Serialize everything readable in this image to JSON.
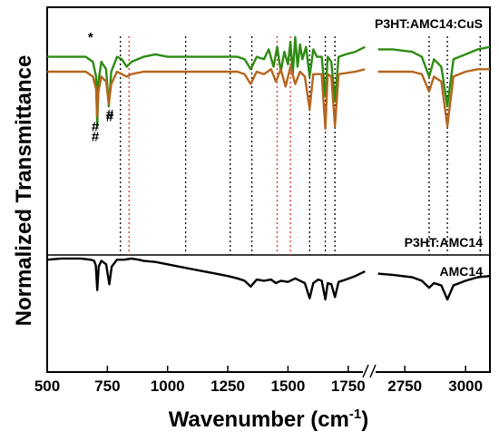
{
  "chart_data": {
    "type": "line",
    "xlabel": "Wavenumber (cm",
    "xlabel_sup": "-1",
    "xlabel_close": ")",
    "ylabel": "Normalized Transmittance",
    "x_tick_labels": [
      "500",
      "750",
      "1000",
      "1250",
      "1500",
      "1750",
      "2750",
      "3000"
    ],
    "x_tick_values": [
      500,
      750,
      1000,
      1250,
      1500,
      1750,
      2750,
      3000
    ],
    "broken_axis": {
      "left_range": [
        500,
        1830
      ],
      "right_range": [
        2630,
        3100
      ]
    },
    "panels": [
      {
        "name": "top",
        "labels": [
          "P3HT:AMC14:CuS",
          "P3HT:AMC14"
        ]
      },
      {
        "name": "bottom",
        "labels": [
          "AMC14"
        ]
      }
    ],
    "series": [
      {
        "name": "P3HT:AMC14:CuS",
        "color": "#2e8b12",
        "panel": "top",
        "points": [
          [
            500,
            80
          ],
          [
            560,
            80
          ],
          [
            620,
            80
          ],
          [
            660,
            80
          ],
          [
            690,
            78
          ],
          [
            703,
            72
          ],
          [
            708,
            52
          ],
          [
            713,
            70
          ],
          [
            725,
            78
          ],
          [
            745,
            75
          ],
          [
            756,
            60
          ],
          [
            766,
            74
          ],
          [
            790,
            80
          ],
          [
            810,
            79
          ],
          [
            830,
            76
          ],
          [
            850,
            78
          ],
          [
            900,
            80
          ],
          [
            950,
            81
          ],
          [
            1000,
            80
          ],
          [
            1050,
            80
          ],
          [
            1100,
            80
          ],
          [
            1150,
            80
          ],
          [
            1200,
            80
          ],
          [
            1250,
            80
          ],
          [
            1290,
            80
          ],
          [
            1320,
            79
          ],
          [
            1345,
            75
          ],
          [
            1370,
            80
          ],
          [
            1400,
            79
          ],
          [
            1420,
            83
          ],
          [
            1440,
            76
          ],
          [
            1455,
            84
          ],
          [
            1470,
            74
          ],
          [
            1485,
            82
          ],
          [
            1500,
            77
          ],
          [
            1510,
            86
          ],
          [
            1520,
            73
          ],
          [
            1530,
            88
          ],
          [
            1540,
            76
          ],
          [
            1550,
            85
          ],
          [
            1560,
            79
          ],
          [
            1575,
            84
          ],
          [
            1590,
            72
          ],
          [
            1605,
            83
          ],
          [
            1620,
            80
          ],
          [
            1640,
            80
          ],
          [
            1655,
            64
          ],
          [
            1665,
            80
          ],
          [
            1680,
            78
          ],
          [
            1695,
            62
          ],
          [
            1710,
            80
          ],
          [
            1740,
            81
          ],
          [
            1780,
            82
          ],
          [
            1820,
            84
          ],
          [
            2640,
            83
          ],
          [
            2700,
            83
          ],
          [
            2780,
            82
          ],
          [
            2820,
            80
          ],
          [
            2850,
            72
          ],
          [
            2870,
            79
          ],
          [
            2900,
            76
          ],
          [
            2925,
            60
          ],
          [
            2950,
            79
          ],
          [
            3000,
            81
          ],
          [
            3050,
            83
          ],
          [
            3100,
            84
          ]
        ]
      },
      {
        "name": "P3HT:AMC14",
        "color": "#b5651d",
        "panel": "top",
        "points": [
          [
            500,
            74
          ],
          [
            560,
            74
          ],
          [
            620,
            74
          ],
          [
            660,
            74
          ],
          [
            690,
            72
          ],
          [
            703,
            67
          ],
          [
            708,
            56
          ],
          [
            713,
            66
          ],
          [
            725,
            72
          ],
          [
            745,
            70
          ],
          [
            756,
            61
          ],
          [
            766,
            69
          ],
          [
            790,
            74
          ],
          [
            830,
            72
          ],
          [
            850,
            73
          ],
          [
            900,
            74
          ],
          [
            1000,
            74
          ],
          [
            1100,
            74
          ],
          [
            1200,
            74
          ],
          [
            1290,
            74
          ],
          [
            1320,
            73
          ],
          [
            1345,
            69
          ],
          [
            1370,
            74
          ],
          [
            1400,
            73
          ],
          [
            1430,
            75
          ],
          [
            1450,
            70
          ],
          [
            1470,
            75
          ],
          [
            1490,
            68
          ],
          [
            1510,
            76
          ],
          [
            1530,
            69
          ],
          [
            1550,
            74
          ],
          [
            1570,
            72
          ],
          [
            1590,
            59
          ],
          [
            1605,
            73
          ],
          [
            1620,
            73
          ],
          [
            1640,
            73
          ],
          [
            1655,
            51
          ],
          [
            1665,
            73
          ],
          [
            1680,
            72
          ],
          [
            1695,
            52
          ],
          [
            1710,
            73
          ],
          [
            1780,
            74
          ],
          [
            1820,
            75
          ],
          [
            2640,
            74
          ],
          [
            2700,
            74
          ],
          [
            2780,
            74
          ],
          [
            2820,
            73
          ],
          [
            2850,
            66
          ],
          [
            2870,
            72
          ],
          [
            2900,
            70
          ],
          [
            2925,
            52
          ],
          [
            2950,
            72
          ],
          [
            3000,
            74
          ],
          [
            3050,
            75
          ],
          [
            3100,
            75
          ]
        ]
      },
      {
        "name": "AMC14",
        "color": "#000000",
        "panel": "bottom",
        "points": [
          [
            500,
            96
          ],
          [
            560,
            97
          ],
          [
            600,
            97
          ],
          [
            640,
            97
          ],
          [
            680,
            96
          ],
          [
            695,
            95
          ],
          [
            702,
            91
          ],
          [
            708,
            70
          ],
          [
            714,
            90
          ],
          [
            725,
            95
          ],
          [
            745,
            92
          ],
          [
            758,
            75
          ],
          [
            768,
            90
          ],
          [
            790,
            96
          ],
          [
            820,
            96
          ],
          [
            850,
            97
          ],
          [
            880,
            96
          ],
          [
            900,
            95
          ],
          [
            950,
            94
          ],
          [
            1000,
            92
          ],
          [
            1050,
            90
          ],
          [
            1100,
            88
          ],
          [
            1150,
            86
          ],
          [
            1200,
            84
          ],
          [
            1250,
            82
          ],
          [
            1290,
            80
          ],
          [
            1320,
            78
          ],
          [
            1345,
            73
          ],
          [
            1370,
            79
          ],
          [
            1400,
            78
          ],
          [
            1430,
            79
          ],
          [
            1450,
            76
          ],
          [
            1470,
            78
          ],
          [
            1500,
            77
          ],
          [
            1530,
            80
          ],
          [
            1550,
            78
          ],
          [
            1570,
            76
          ],
          [
            1590,
            63
          ],
          [
            1605,
            76
          ],
          [
            1625,
            79
          ],
          [
            1640,
            78
          ],
          [
            1655,
            62
          ],
          [
            1665,
            76
          ],
          [
            1680,
            75
          ],
          [
            1695,
            64
          ],
          [
            1710,
            77
          ],
          [
            1740,
            79
          ],
          [
            1780,
            82
          ],
          [
            1820,
            86
          ],
          [
            2640,
            84
          ],
          [
            2700,
            83
          ],
          [
            2780,
            81
          ],
          [
            2820,
            78
          ],
          [
            2850,
            72
          ],
          [
            2870,
            76
          ],
          [
            2900,
            74
          ],
          [
            2925,
            62
          ],
          [
            2950,
            74
          ],
          [
            3000,
            78
          ],
          [
            3050,
            81
          ],
          [
            3100,
            82
          ]
        ]
      }
    ],
    "reference_lines": [
      {
        "x": 804,
        "color": "#000000"
      },
      {
        "x": 840,
        "color": "#e0301e"
      },
      {
        "x": 1075,
        "color": "#000000"
      },
      {
        "x": 1260,
        "color": "#000000"
      },
      {
        "x": 1350,
        "color": "#000000"
      },
      {
        "x": 1455,
        "color": "#e0301e"
      },
      {
        "x": 1510,
        "color": "#e0301e"
      },
      {
        "x": 1590,
        "color": "#000000"
      },
      {
        "x": 1655,
        "color": "#000000"
      },
      {
        "x": 1695,
        "color": "#000000"
      },
      {
        "x": 2850,
        "color": "#000000"
      },
      {
        "x": 2925,
        "color": "#000000"
      },
      {
        "x": 3060,
        "color": "#000000"
      }
    ],
    "annotations": [
      {
        "text": "*",
        "x": 680,
        "series": "P3HT:AMC14:CuS",
        "value": 86
      },
      {
        "text": "#",
        "x": 700,
        "series": "P3HT:AMC14:CuS",
        "value": 46
      },
      {
        "text": "#",
        "x": 760,
        "series": "P3HT:AMC14:CuS",
        "value": 54
      },
      {
        "text": "#",
        "x": 700,
        "series": "P3HT:AMC14",
        "value": 50
      },
      {
        "text": "#",
        "x": 760,
        "series": "P3HT:AMC14",
        "value": 55
      }
    ],
    "grid": false,
    "legend": "none"
  }
}
